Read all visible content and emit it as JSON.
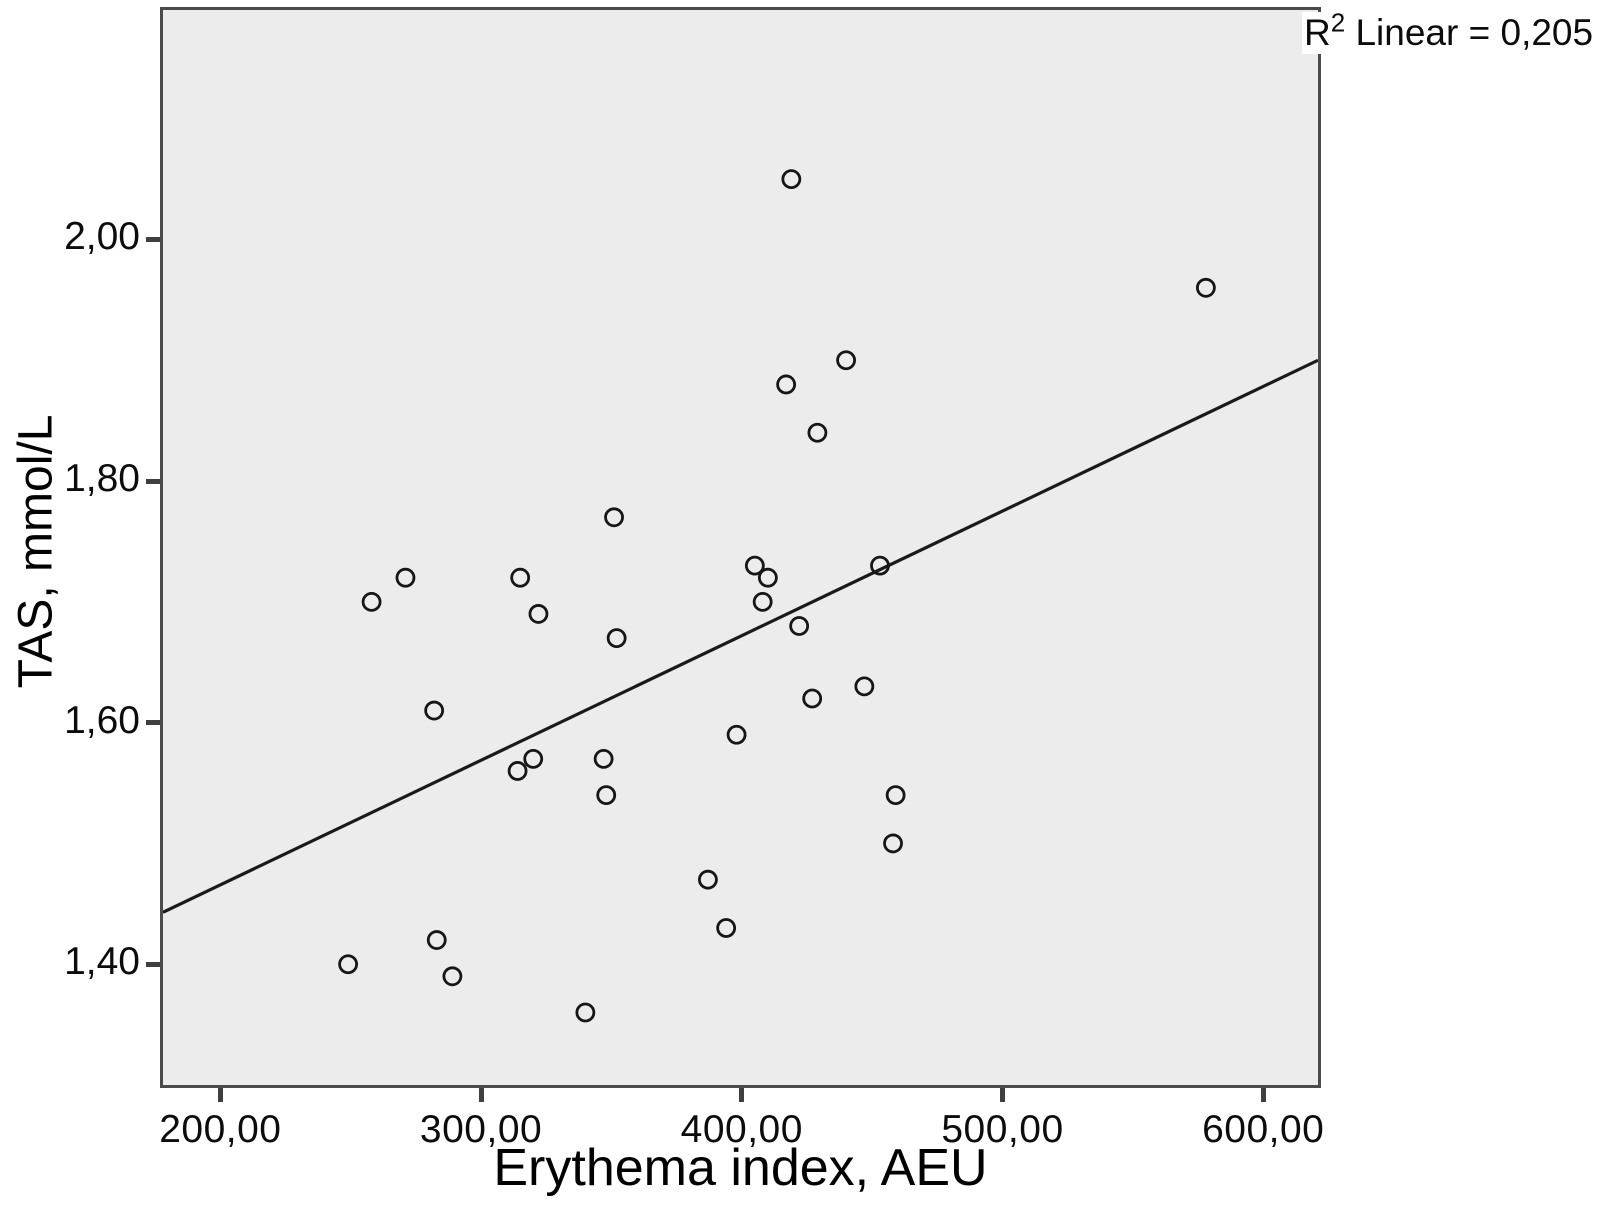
{
  "annotation": {
    "r2_base": "R",
    "r2_sup": "2",
    "r2_rest": " Linear = 0,205"
  },
  "chart_data": {
    "type": "scatter",
    "title": "",
    "xlabel": "Erythema index, AEU",
    "ylabel": "TAS, mmol/L",
    "xlim": [
      178,
      621
    ],
    "ylim": [
      1.3,
      2.19
    ],
    "grid": false,
    "legend": "none",
    "marker": "open-circle",
    "x_ticks": [
      {
        "value": 200,
        "label": "200,00"
      },
      {
        "value": 300,
        "label": "300,00"
      },
      {
        "value": 400,
        "label": "400,00"
      },
      {
        "value": 500,
        "label": "500,00"
      },
      {
        "value": 600,
        "label": "600,00"
      }
    ],
    "y_ticks": [
      {
        "value": 1.4,
        "label": "1,40"
      },
      {
        "value": 1.6,
        "label": "1,60"
      },
      {
        "value": 1.8,
        "label": "1,80"
      },
      {
        "value": 2.0,
        "label": "2,00"
      }
    ],
    "points": [
      [
        419,
        2.05
      ],
      [
        578,
        1.96
      ],
      [
        440,
        1.9
      ],
      [
        417,
        1.88
      ],
      [
        429,
        1.84
      ],
      [
        351,
        1.77
      ],
      [
        405,
        1.73
      ],
      [
        410,
        1.72
      ],
      [
        408,
        1.7
      ],
      [
        422,
        1.68
      ],
      [
        453,
        1.73
      ],
      [
        271,
        1.72
      ],
      [
        258,
        1.7
      ],
      [
        315,
        1.72
      ],
      [
        322,
        1.69
      ],
      [
        352,
        1.67
      ],
      [
        282,
        1.61
      ],
      [
        447,
        1.63
      ],
      [
        427,
        1.62
      ],
      [
        398,
        1.59
      ],
      [
        320,
        1.57
      ],
      [
        314,
        1.56
      ],
      [
        347,
        1.57
      ],
      [
        348,
        1.54
      ],
      [
        459,
        1.54
      ],
      [
        458,
        1.5
      ],
      [
        387,
        1.47
      ],
      [
        394,
        1.43
      ],
      [
        283,
        1.42
      ],
      [
        249,
        1.4
      ],
      [
        289,
        1.39
      ],
      [
        340,
        1.36
      ]
    ],
    "fit_line": {
      "x1": 178,
      "y1": 1.443,
      "x2": 621,
      "y2": 1.9
    },
    "r2_label": "R2 Linear = 0,205",
    "colors": {
      "plot_bg": "#ececec",
      "plot_border": "#4b4b4b",
      "marker_stroke": "#161616",
      "fit_line": "#1a1a1a",
      "text": "#0c0c0c"
    }
  }
}
